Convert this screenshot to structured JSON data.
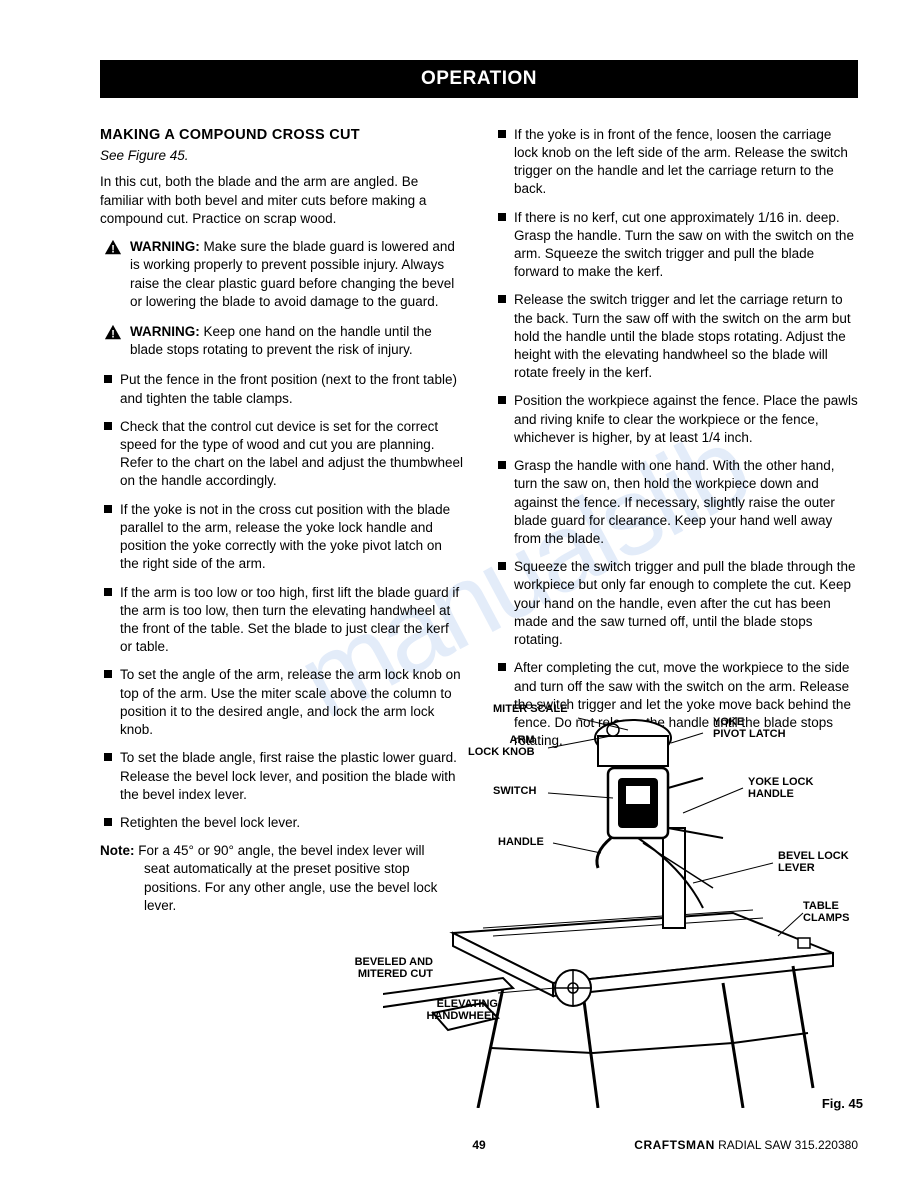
{
  "header": "OPERATION",
  "left": {
    "title": "MAKING A COMPOUND CROSS CUT",
    "seeFig": "See Figure 45.",
    "intro": "In this cut, both the blade and the arm are angled. Be familiar with both bevel and miter cuts before making a compound cut. Practice on scrap wood.",
    "warn1": "Make sure the blade guard is lowered and is working properly to prevent possible injury. Always raise the clear plastic guard before changing the bevel or lowering the blade to avoid damage to the guard.",
    "warn2": "Keep one hand on the handle until the blade stops rotating to prevent the risk of injury.",
    "bullets": [
      "Put the fence in the front position (next to the front table) and tighten the table clamps.",
      "Check that the control cut device is set for the correct speed for the type of wood and cut you are planning. Refer to the chart on the label and adjust the thumbwheel on the handle accordingly.",
      "If the yoke is not in the cross cut position with the blade parallel to the arm, release the yoke lock handle and position the yoke correctly with the yoke pivot latch on the right side of the arm.",
      "If the arm is too low or too high, first lift the blade guard if the arm is too low, then turn the elevating handwheel at the front of the table. Set the blade to just clear the kerf or table.",
      "To set the angle of the arm, release the arm lock knob on top of the arm. Use the miter scale above the column to position it to the desired angle, and lock the arm lock knob.",
      "To set the blade angle, first raise the plastic lower guard. Release the bevel lock lever, and position the blade with the bevel index lever.",
      "Retighten the bevel lock lever."
    ],
    "noteLabel": "Note:",
    "noteFirst": "For a 45° or 90° angle, the bevel index lever will",
    "noteRest": "seat automatically at the preset positive stop positions. For any other angle, use the bevel lock lever."
  },
  "right": {
    "bullets": [
      "If the yoke is in front of the fence, loosen the carriage lock knob on the left side of the arm. Release the switch trigger on the handle and let the carriage return to the back.",
      "If there is no kerf, cut one approximately 1/16 in. deep. Grasp the handle. Turn the saw on with the switch on the arm. Squeeze the switch trigger and pull the blade forward to make the kerf.",
      "Release the switch trigger and let the carriage return to the back. Turn the saw off with the switch on the arm but hold the handle until the blade stops rotating. Adjust the height with the elevating handwheel so the blade will rotate freely in the kerf.",
      "Position the workpiece against the fence. Place the pawls and riving knife to clear the workpiece or the fence, whichever is higher, by at least 1/4 inch.",
      "Grasp the handle with one hand. With the other hand, turn the saw on, then hold the workpiece down and against the fence. If necessary, slightly raise the outer blade guard for clearance. Keep your hand well away from the blade.",
      "Squeeze the switch trigger and pull the blade through the workpiece but only far enough to complete the cut. Keep your hand on the handle, even after the cut has been made and the saw turned off, until the blade stops rotating.",
      "After completing the cut, move the workpiece to the side and turn off the saw with the switch on the arm. Release the switch trigger and let the yoke move back behind the fence. Do not release the handle until the blade stops rotating."
    ]
  },
  "figure": {
    "labels": {
      "miterScale": "MITER SCALE",
      "armLockKnob": "ARM\nLOCK KNOB",
      "switch": "SWITCH",
      "handle": "HANDLE",
      "yokePivotLatch": "YOKE\nPIVOT LATCH",
      "yokeLockHandle": "YOKE LOCK\nHANDLE",
      "bevelLockLever": "BEVEL LOCK\nLEVER",
      "tableClamps": "TABLE\nCLAMPS",
      "beveledMitered": "BEVELED AND\nMITERED CUT",
      "elevatingHandwheel": "ELEVATING\nHANDWHEEL"
    },
    "caption": "Fig. 45"
  },
  "footer": {
    "page": "49",
    "brand": "CRAFTSMAN",
    "model": "RADIAL SAW 315.220380"
  },
  "warningLabel": "WARNING:"
}
